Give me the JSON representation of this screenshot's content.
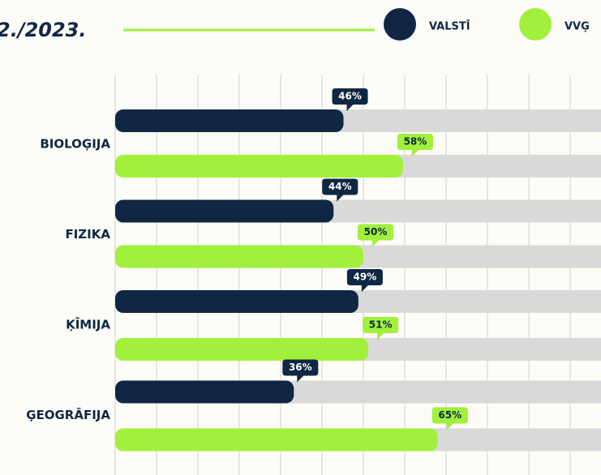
{
  "chart_data": {
    "type": "bar",
    "orientation": "horizontal",
    "title": "2./2023.",
    "categories": [
      "BIOLOĢIJA",
      "FIZIKA",
      "ĶĪMIJA",
      "ĢEOGRĀFIJA"
    ],
    "xlim": [
      0,
      100
    ],
    "series": [
      {
        "name": "VALSTĪ",
        "color": "#0f2742",
        "values": [
          46,
          44,
          49,
          36
        ],
        "value_labels": [
          "46%",
          "44%",
          "49%",
          "36%"
        ]
      },
      {
        "name": "VVĢ",
        "color": "#a0f03c",
        "values": [
          58,
          50,
          51,
          65
        ],
        "value_labels": [
          "58%",
          "50%",
          "51%",
          "65%"
        ]
      }
    ]
  }
}
